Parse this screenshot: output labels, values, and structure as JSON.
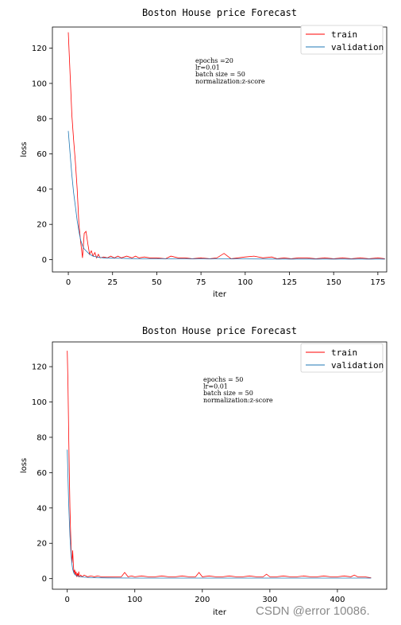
{
  "chart_data": [
    {
      "type": "line",
      "title": "Boston House price Forecast",
      "xlabel": "iter",
      "ylabel": "loss",
      "xlim": [
        -9,
        180
      ],
      "ylim": [
        -7,
        132
      ],
      "xticks": [
        0,
        25,
        50,
        75,
        100,
        125,
        150,
        175
      ],
      "yticks": [
        0,
        20,
        40,
        60,
        80,
        100,
        120
      ],
      "grid": false,
      "legend_position": "top-right",
      "annotation": [
        "epochs =20",
        "lr=0.01",
        "batch size = 50",
        "normalization:z-score"
      ],
      "series": [
        {
          "name": "train",
          "color": "#ff0000",
          "x": [
            0,
            1,
            2,
            3,
            4,
            5,
            6,
            7,
            8,
            9,
            10,
            11,
            12,
            13,
            14,
            15,
            16,
            17,
            18,
            20,
            22,
            24,
            26,
            28,
            30,
            33,
            36,
            38,
            40,
            43,
            46,
            50,
            55,
            58,
            62,
            66,
            70,
            75,
            80,
            84,
            88,
            92,
            96,
            100,
            105,
            110,
            115,
            118,
            122,
            126,
            130,
            135,
            140,
            145,
            150,
            155,
            160,
            165,
            170,
            175,
            179
          ],
          "y": [
            129,
            105,
            82,
            68,
            55,
            40,
            20,
            10,
            1,
            15,
            16,
            9,
            3,
            5,
            2,
            4,
            1,
            3,
            1,
            1.5,
            1,
            2,
            1,
            2,
            1,
            2,
            1,
            2,
            1,
            1.5,
            1,
            1,
            0.5,
            2,
            1,
            1,
            0.5,
            1,
            0.5,
            1,
            3.5,
            0.5,
            1,
            1.5,
            2,
            1,
            1.5,
            0.5,
            1,
            0.5,
            1,
            1,
            0.5,
            1,
            0.5,
            1,
            0.5,
            1,
            0.5,
            1,
            0.5
          ]
        },
        {
          "name": "validation",
          "color": "#1f77b4",
          "x": [
            0,
            1,
            2,
            3,
            4,
            5,
            6,
            7,
            8,
            9,
            10,
            11,
            12,
            13,
            14,
            15,
            16,
            18,
            20,
            22,
            25,
            30,
            35,
            40,
            50,
            60,
            80,
            100,
            120,
            140,
            160,
            179
          ],
          "y": [
            73,
            60,
            48,
            38,
            30,
            22,
            16,
            11,
            8,
            6,
            5,
            4,
            3,
            2.5,
            2,
            1.8,
            1.5,
            1.2,
            1,
            0.9,
            0.8,
            0.7,
            0.6,
            0.5,
            0.5,
            0.4,
            0.4,
            0.4,
            0.3,
            0.3,
            0.3,
            0.3
          ]
        }
      ]
    },
    {
      "type": "line",
      "title": "Boston House price Forecast",
      "xlabel": "iter",
      "ylabel": "loss",
      "xlim": [
        -22,
        473
      ],
      "ylim": [
        -6,
        134
      ],
      "xticks": [
        0,
        100,
        200,
        300,
        400
      ],
      "yticks": [
        0,
        20,
        40,
        60,
        80,
        100,
        120
      ],
      "grid": false,
      "legend_position": "top-right",
      "annotation": [
        "epochs = 50",
        "lr=0.01",
        "batch size = 50",
        "normalization:z-score"
      ],
      "series": [
        {
          "name": "train",
          "color": "#ff0000",
          "x": [
            0,
            1,
            2,
            3,
            4,
            5,
            6,
            7,
            8,
            9,
            10,
            11,
            12,
            13,
            14,
            15,
            16,
            17,
            18,
            20,
            22,
            25,
            30,
            35,
            40,
            45,
            50,
            60,
            70,
            80,
            85,
            90,
            95,
            100,
            110,
            120,
            130,
            140,
            150,
            160,
            170,
            180,
            190,
            195,
            200,
            210,
            220,
            230,
            240,
            250,
            260,
            270,
            280,
            290,
            295,
            300,
            310,
            320,
            330,
            340,
            350,
            360,
            370,
            380,
            390,
            400,
            410,
            420,
            425,
            430,
            440,
            450
          ],
          "y": [
            129,
            110,
            85,
            60,
            40,
            25,
            14,
            9,
            16,
            8,
            3,
            5,
            2,
            4,
            1,
            3,
            1,
            4,
            1,
            2,
            1,
            2,
            1,
            1.5,
            1,
            1.5,
            1,
            1,
            1,
            1,
            3.5,
            1,
            1.5,
            1,
            1.5,
            1,
            1,
            1.5,
            1,
            1,
            1.5,
            1,
            1,
            3.5,
            1,
            1.5,
            1,
            1,
            1.5,
            1,
            1,
            1.5,
            1,
            1,
            2.5,
            1,
            1,
            1.5,
            1,
            1,
            1.5,
            1,
            1,
            1.5,
            1,
            1,
            1.5,
            1,
            2,
            1,
            1,
            0.5
          ]
        },
        {
          "name": "validation",
          "color": "#1f77b4",
          "x": [
            0,
            1,
            2,
            3,
            4,
            5,
            6,
            7,
            8,
            9,
            10,
            12,
            15,
            20,
            25,
            30,
            40,
            60,
            100,
            200,
            300,
            400,
            450
          ],
          "y": [
            73,
            58,
            44,
            33,
            24,
            17,
            12,
            8,
            5.5,
            4,
            3,
            2,
            1.5,
            1,
            0.8,
            0.7,
            0.5,
            0.4,
            0.3,
            0.3,
            0.3,
            0.3,
            0.3
          ]
        }
      ]
    }
  ],
  "watermark": "CSDN @error 10086."
}
